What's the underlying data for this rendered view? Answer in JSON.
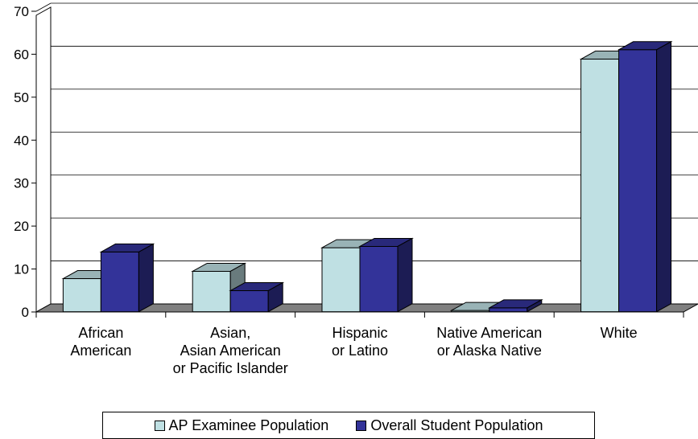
{
  "chart_data": {
    "type": "bar",
    "categories": [
      [
        "African",
        "American"
      ],
      [
        "Asian,",
        "Asian American",
        "or Pacific Islander"
      ],
      [
        "Hispanic",
        "or Latino"
      ],
      [
        "Native American",
        "or Alaska Native"
      ],
      [
        "White"
      ]
    ],
    "series": [
      {
        "name": "AP Examinee Population",
        "values": [
          7.7,
          9.4,
          14.9,
          0.3,
          58.8
        ],
        "color": "#bfe0e3"
      },
      {
        "name": "Overall Student Population",
        "values": [
          13.9,
          4.9,
          15.2,
          0.9,
          61.0
        ],
        "color": "#333399"
      }
    ],
    "ylim": [
      0,
      70
    ],
    "yticks": [
      0,
      10,
      20,
      30,
      40,
      50,
      60,
      70
    ],
    "grid": true,
    "three_d": true,
    "legend_position": "bottom",
    "title": "",
    "xlabel": "",
    "ylabel": ""
  }
}
